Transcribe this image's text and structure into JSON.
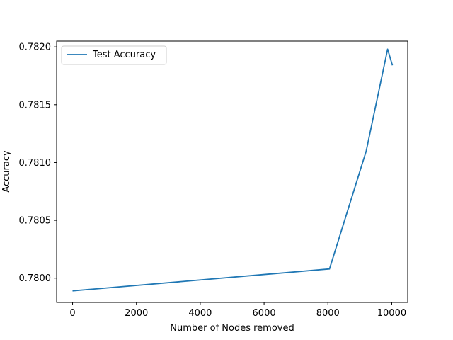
{
  "chart_data": {
    "type": "line",
    "xlabel": "Number of Nodes removed",
    "ylabel": "Accuracy",
    "xlim": [
      -500,
      10500
    ],
    "ylim": [
      0.77979,
      0.78205
    ],
    "xticks": [
      0,
      2000,
      4000,
      6000,
      8000,
      10000
    ],
    "xtick_labels": [
      "0",
      "2000",
      "4000",
      "6000",
      "8000",
      "10000"
    ],
    "yticks": [
      0.78,
      0.7805,
      0.781,
      0.7815,
      0.782
    ],
    "ytick_labels": [
      "0.7800",
      "0.7805",
      "0.7810",
      "0.7815",
      "0.7820"
    ],
    "grid": false,
    "legend_placement": "top-left",
    "series": [
      {
        "name": "Test Accuracy",
        "color": "#1f77b4",
        "x": [
          0,
          8050,
          9200,
          9870,
          10020
        ],
        "y": [
          0.77989,
          0.78008,
          0.7811,
          0.78198,
          0.78184
        ]
      }
    ]
  }
}
